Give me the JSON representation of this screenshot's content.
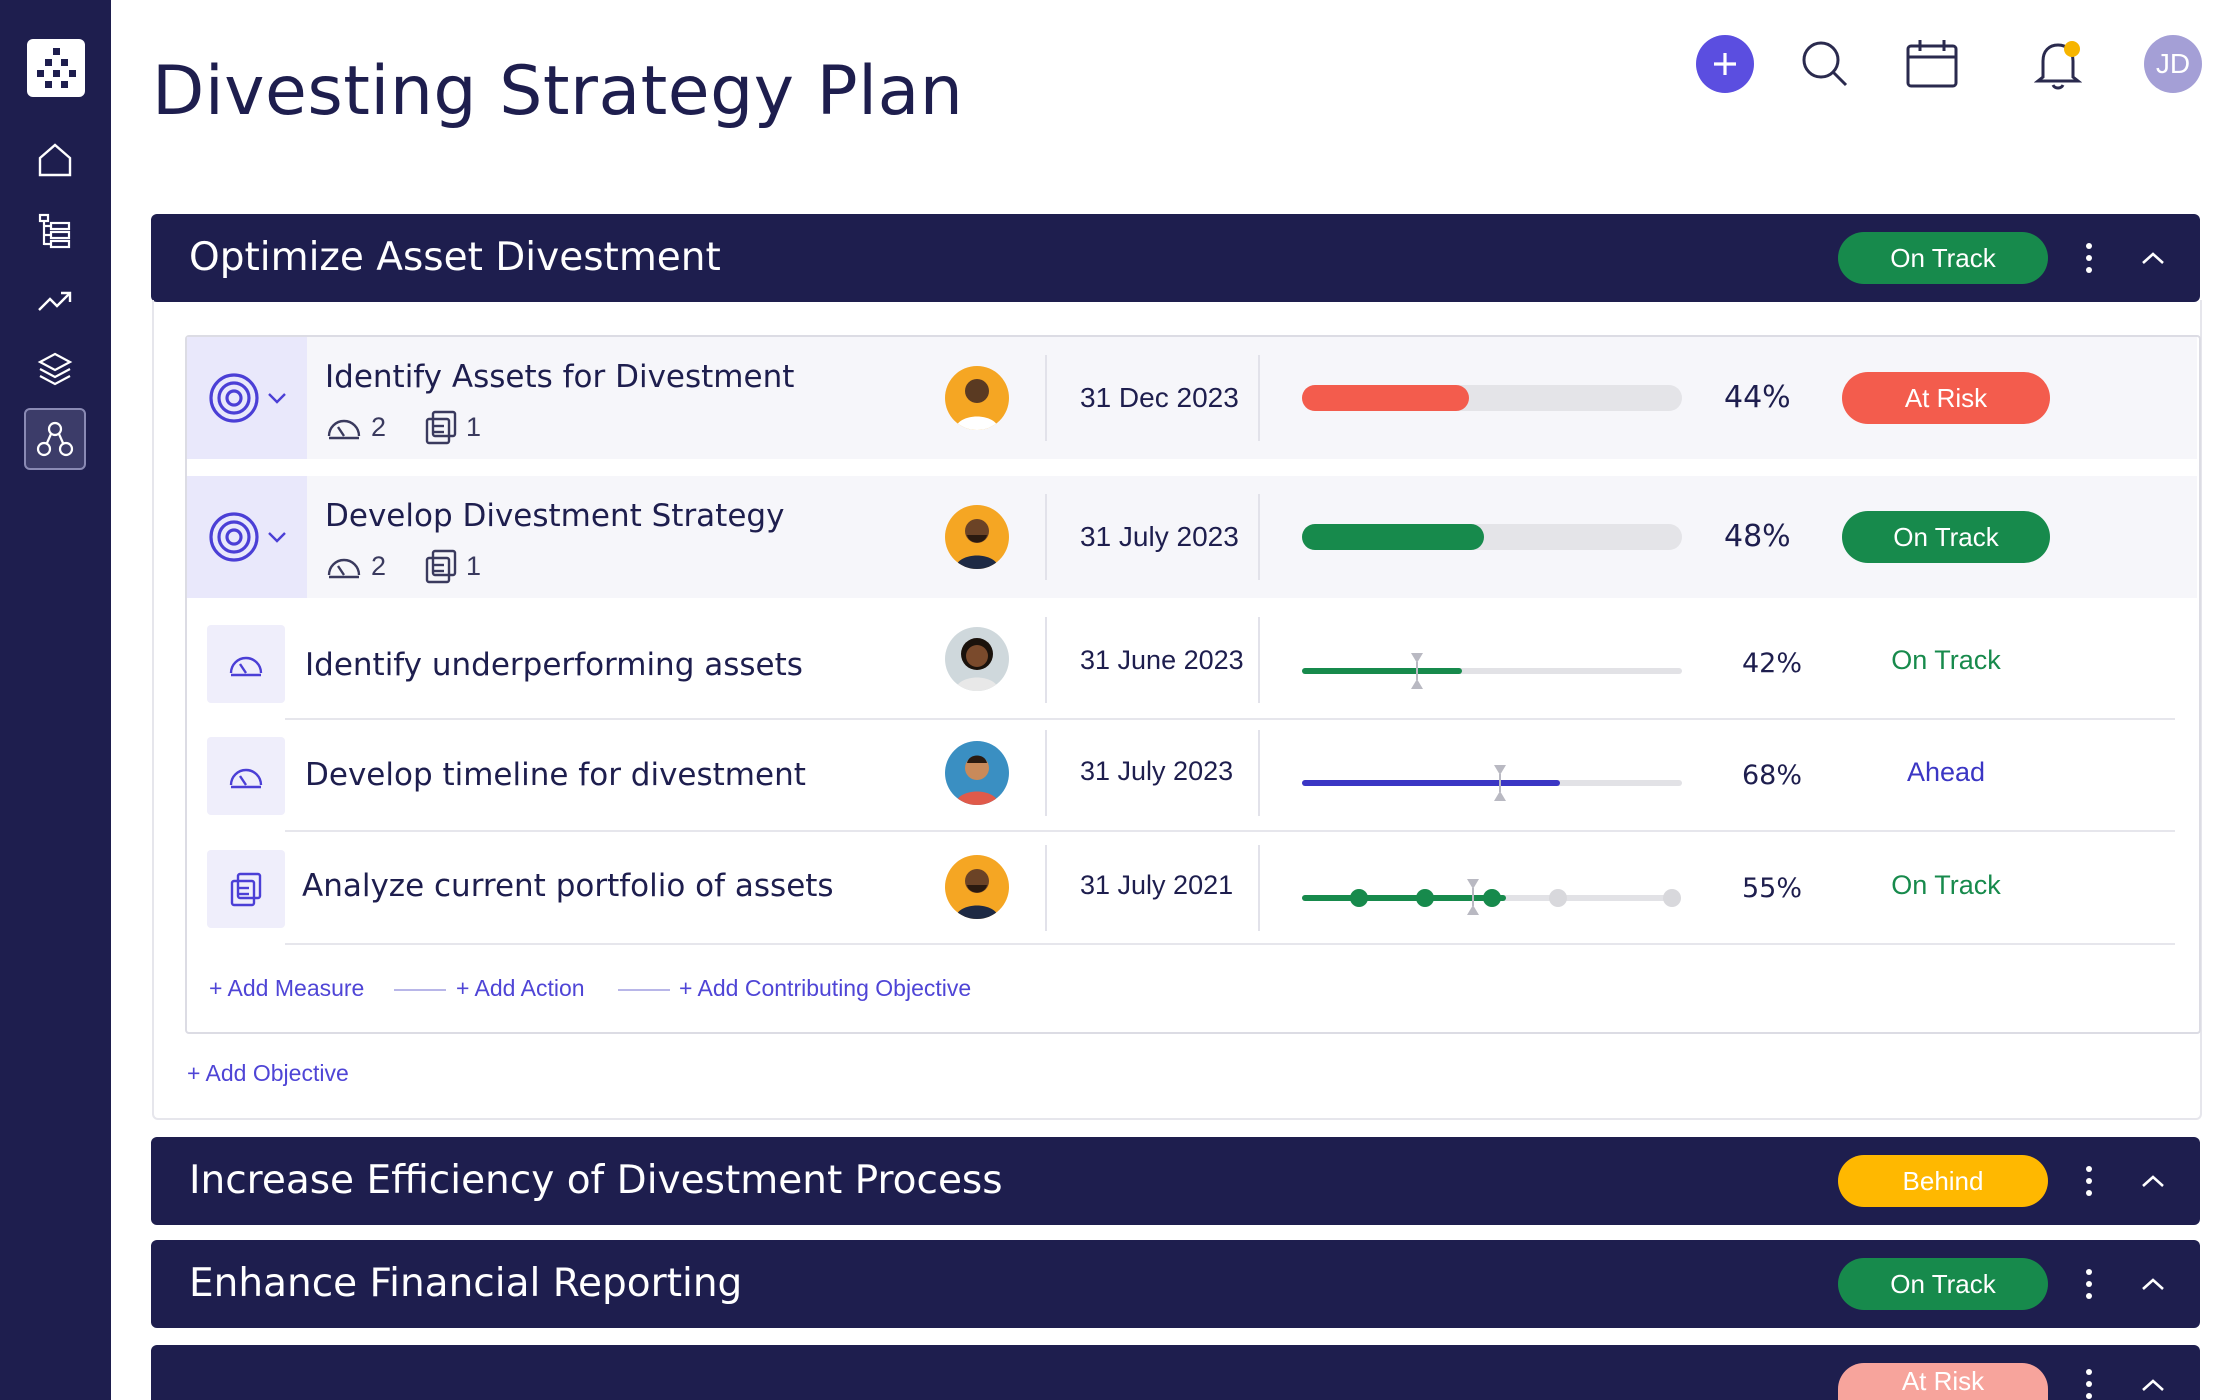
{
  "page": {
    "title": "Divesting Strategy Plan"
  },
  "topbar": {
    "add_icon": "plus-icon",
    "search_icon": "search-icon",
    "calendar_icon": "calendar-icon",
    "bell_icon": "bell-icon",
    "avatar_initials": "JD",
    "avatar_color": "#a49fd6"
  },
  "sidebar": {
    "logo_icon": "app-logo",
    "items": [
      {
        "icon": "home-icon"
      },
      {
        "icon": "list-tree-icon"
      },
      {
        "icon": "trend-up-icon"
      },
      {
        "icon": "layers-icon"
      },
      {
        "icon": "hierarchy-icon",
        "active": true
      }
    ]
  },
  "colors": {
    "navy": "#1e1e4e",
    "on_track": "#178a4c",
    "at_risk": "#f35c4d",
    "behind": "#ffb800",
    "ahead": "#3b36c4",
    "accent": "#5b4ee0"
  },
  "groups": [
    {
      "title": "Optimize Asset Divestment",
      "status": "On Track",
      "objectives": [
        {
          "title": "Identify Assets for Divestment",
          "measures_count": "2",
          "actions_count": "1",
          "date": "31 Dec 2023",
          "progress": 44,
          "percent_label": "44%",
          "status": "At Risk"
        },
        {
          "title": "Develop Divestment Strategy",
          "measures_count": "2",
          "actions_count": "1",
          "date": "31 July 2023",
          "progress": 48,
          "percent_label": "48%",
          "status": "On Track",
          "children": [
            {
              "type": "measure",
              "title": "Identify underperforming assets",
              "date": "31 June 2023",
              "progress": 42,
              "percent_label": "42%",
              "status": "On Track"
            },
            {
              "type": "measure",
              "title": "Develop timeline for divestment",
              "date": "31 July 2023",
              "progress": 68,
              "percent_label": "68%",
              "status": "Ahead"
            },
            {
              "type": "action",
              "title": "Analyze current portfolio of assets",
              "date": "31 July 2021",
              "progress": 55,
              "percent_label": "55%",
              "status": "On Track",
              "milestones": 5,
              "milestones_done": 3
            }
          ],
          "links": {
            "add_measure": "+ Add Measure",
            "add_action": "+ Add Action",
            "add_contributing": "+ Add Contributing Objective"
          }
        }
      ],
      "add_objective": "+ Add Objective"
    },
    {
      "title": "Increase Efficiency of Divestment Process",
      "status": "Behind"
    },
    {
      "title": "Enhance Financial Reporting",
      "status": "On Track"
    },
    {
      "title": "",
      "status": "At Risk"
    }
  ]
}
